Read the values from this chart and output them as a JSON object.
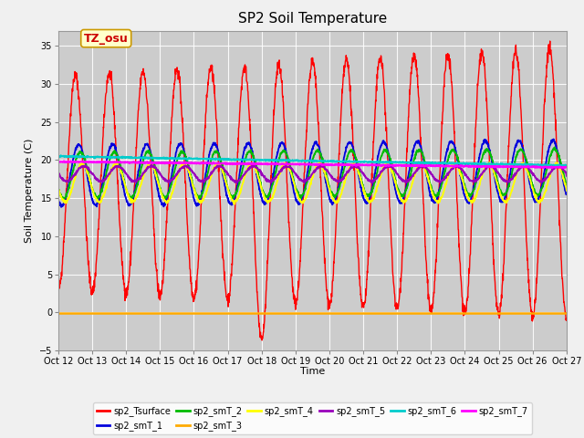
{
  "title": "SP2 Soil Temperature",
  "xlabel": "Time",
  "ylabel": "Soil Temperature (C)",
  "ylim": [
    -5,
    37
  ],
  "yticks": [
    -5,
    0,
    5,
    10,
    15,
    20,
    25,
    30,
    35
  ],
  "xtick_labels": [
    "Oct 12",
    "Oct 13",
    "Oct 14",
    "Oct 15",
    "Oct 16",
    "Oct 17",
    "Oct 18",
    "Oct 19",
    "Oct 20",
    "Oct 21",
    "Oct 22",
    "Oct 23",
    "Oct 24",
    "Oct 25",
    "Oct 26",
    "Oct 27"
  ],
  "fig_facecolor": "#f0f0f0",
  "ax_facecolor": "#cccccc",
  "grid_color": "#ffffff",
  "series_colors": {
    "sp2_Tsurface": "#ff0000",
    "sp2_smT_1": "#0000dd",
    "sp2_smT_2": "#00bb00",
    "sp2_smT_3": "#ffaa00",
    "sp2_smT_4": "#ffff00",
    "sp2_smT_5": "#9900bb",
    "sp2_smT_6": "#00cccc",
    "sp2_smT_7": "#ff00ff"
  },
  "legend_entries": [
    "sp2_Tsurface",
    "sp2_smT_1",
    "sp2_smT_2",
    "sp2_smT_3",
    "sp2_smT_4",
    "sp2_smT_5",
    "sp2_smT_6",
    "sp2_smT_7"
  ],
  "annotation_text": "TZ_osu",
  "title_fontsize": 11,
  "axis_label_fontsize": 8,
  "tick_fontsize": 7,
  "legend_fontsize": 7
}
